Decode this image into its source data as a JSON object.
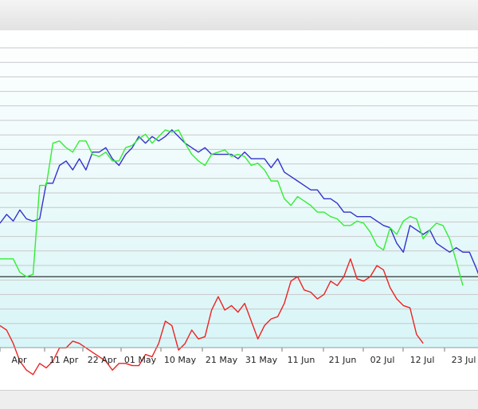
{
  "chart_data": {
    "type": "line",
    "x_tick_labels": [
      "Apr",
      "11 Apr",
      "22 Apr",
      "01 May",
      "10 May",
      "21 May",
      "31 May",
      "11 Jun",
      "21 Jun",
      "02 Jul",
      "12 Jul",
      "23 Jul"
    ],
    "ylim": [
      -100,
      100
    ],
    "grid": true,
    "legend": "none",
    "reference_line": 0,
    "colors": {
      "blue": "#3333cc",
      "green": "#33ee33",
      "red": "#ee2222",
      "plot_bg_top": "#ffffff",
      "plot_bg_bottom": "#d8f5f7"
    },
    "series": [
      {
        "color": "#3333cc",
        "values": [
          24,
          28,
          25,
          30,
          26,
          25,
          26,
          42,
          42,
          50,
          52,
          48,
          53,
          48,
          56,
          56,
          58,
          53,
          50,
          55,
          58,
          63,
          60,
          63,
          61,
          63,
          66,
          63,
          60,
          58,
          56,
          58,
          55,
          55,
          55,
          55,
          53,
          56,
          53,
          53,
          53,
          49,
          53,
          47,
          45,
          43,
          41,
          39,
          39,
          35,
          35,
          33,
          29,
          29,
          27,
          27,
          27,
          25,
          23,
          22,
          15,
          11,
          23,
          21,
          19,
          21,
          15,
          13,
          11,
          13,
          11,
          11,
          4,
          -4
        ]
      },
      {
        "color": "#33ee33",
        "values": [
          8,
          8,
          8,
          2,
          0,
          1,
          41,
          41,
          60,
          61,
          58,
          56,
          61,
          61,
          55,
          54,
          56,
          52,
          52,
          58,
          59,
          62,
          64,
          60,
          63,
          66,
          65,
          66,
          60,
          55,
          52,
          50,
          55,
          56,
          57,
          54,
          55,
          54,
          50,
          51,
          48,
          43,
          43,
          35,
          32,
          36,
          34,
          32,
          29,
          29,
          27,
          26,
          23,
          23,
          25,
          24,
          20,
          14,
          12,
          22,
          19,
          25,
          27,
          26,
          17,
          21,
          24,
          23,
          17,
          7,
          -4
        ]
      },
      {
        "color": "#ee2222",
        "values": [
          -22,
          -24,
          -30,
          -38,
          -42,
          -44,
          -39,
          -41,
          -38,
          -32,
          -32,
          -29,
          -30,
          -32,
          -34,
          -36,
          -38,
          -42,
          -39,
          -39,
          -40,
          -40,
          -35,
          -36,
          -30,
          -20,
          -22,
          -33,
          -30,
          -24,
          -28,
          -27,
          -15,
          -9,
          -15,
          -13,
          -16,
          -12,
          -20,
          -28,
          -22,
          -19,
          -18,
          -12,
          -2,
          0,
          -6,
          -7,
          -10,
          -8,
          -2,
          -4,
          0,
          8,
          -1,
          -2,
          0,
          5,
          3,
          -5,
          -10,
          -13,
          -14,
          -26,
          -30
        ]
      }
    ]
  }
}
